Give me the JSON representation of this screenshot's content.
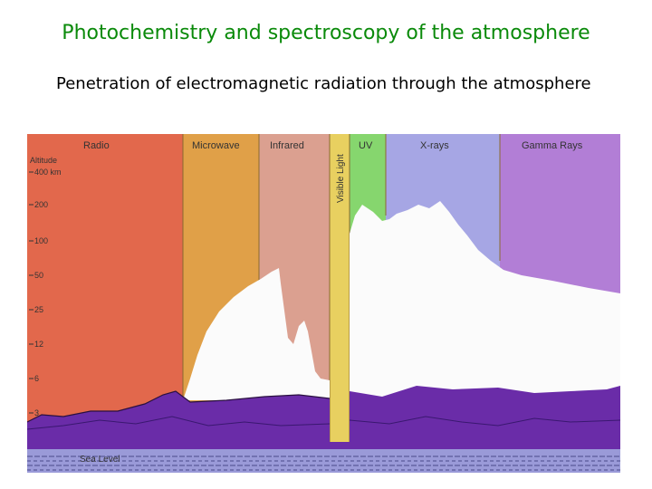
{
  "slide": {
    "title": "Photochemistry and spectroscopy of the atmosphere",
    "subtitle": "Penetration of electromagnetic radiation through the atmosphere"
  },
  "figure": {
    "bands": {
      "radio": "Radio",
      "microwave": "Microwave",
      "infrared": "Infrared",
      "visible": "Visible Light",
      "uv": "UV",
      "xrays": "X-rays",
      "gamma": "Gamma Rays"
    },
    "axis": {
      "title": "Altitude",
      "ticks": [
        "400 km",
        "200",
        "100",
        "50",
        "25",
        "12",
        "6",
        "3"
      ]
    },
    "sea_level": "Sea Level"
  },
  "colors": {
    "title": "#0a8a0a",
    "radio": "#e2684c",
    "microwave": "#e0a048",
    "infrared": "#dba090",
    "visible": "#e8d060",
    "uv": "#86d66e",
    "xrays": "#a6a6e4",
    "gamma": "#b27ed6",
    "penetration": "#fbfbfb",
    "terrain": "#6a2ca8",
    "sea": "#9a9ad8"
  }
}
